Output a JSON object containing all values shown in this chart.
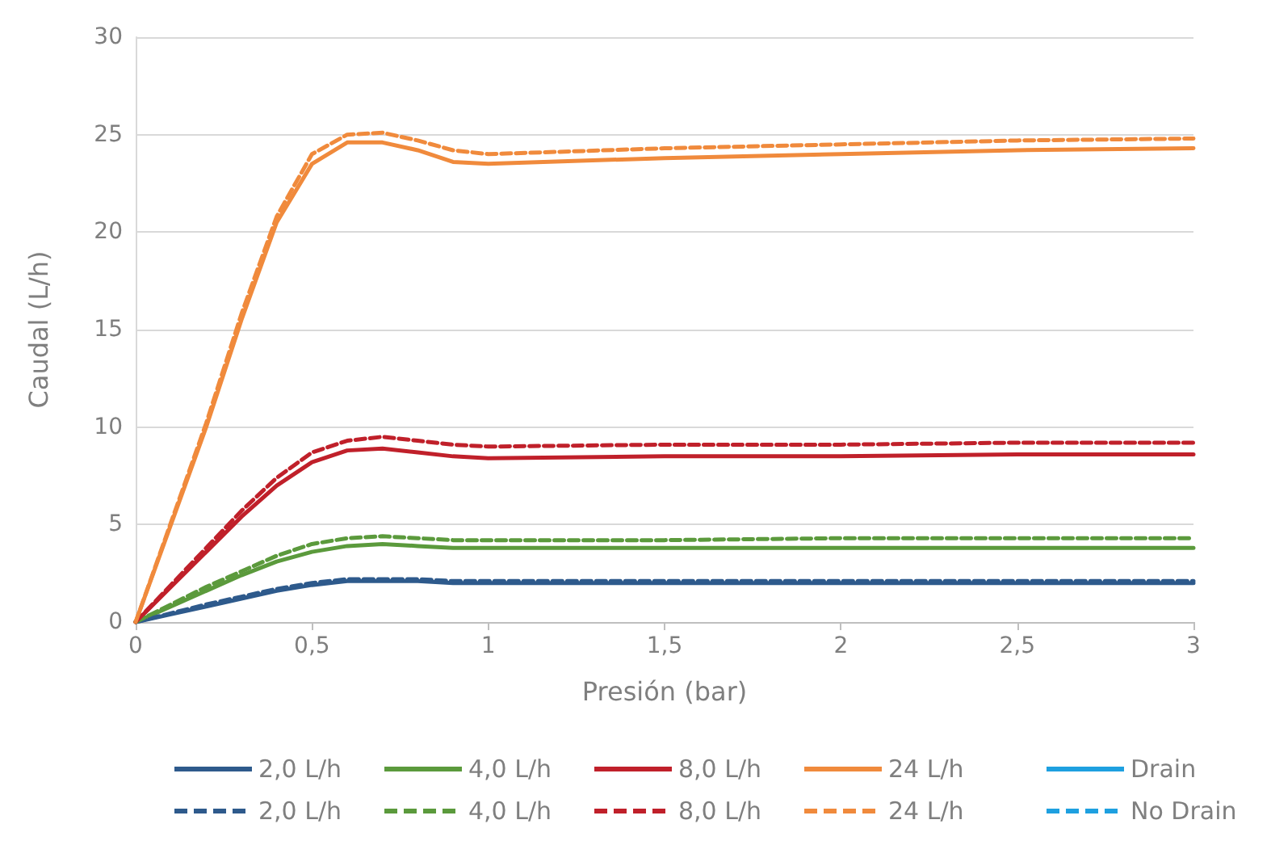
{
  "chart_data": {
    "type": "line",
    "xlabel": "Presión (bar)",
    "ylabel": "Caudal (L/h)",
    "x": [
      0,
      0.1,
      0.2,
      0.3,
      0.4,
      0.5,
      0.6,
      0.7,
      0.8,
      0.9,
      1,
      1.5,
      2,
      2.5,
      3
    ],
    "xlim": [
      0,
      3
    ],
    "xticks": [
      0,
      {
        "value": 0.5,
        "label": "0,5"
      },
      1,
      {
        "value": 1.5,
        "label": "1,5"
      },
      2,
      {
        "value": 2.5,
        "label": "2,5"
      },
      3
    ],
    "ylim": [
      0,
      30
    ],
    "yticks": [
      0,
      5,
      10,
      15,
      20,
      25,
      30
    ],
    "grid": "y",
    "legend": "bottom",
    "marker": "none",
    "series": [
      {
        "name": "2,0 L/h",
        "color": "#2e5a8c",
        "line_style": "solid",
        "values": [
          0,
          0.4,
          0.8,
          1.2,
          1.6,
          1.9,
          2.1,
          2.1,
          2.1,
          2.0,
          2.0,
          2.0,
          2.0,
          2.0,
          2.0
        ]
      },
      {
        "name": "4,0 L/h",
        "color": "#5b9a3c",
        "line_style": "solid",
        "values": [
          0,
          0.8,
          1.6,
          2.4,
          3.1,
          3.6,
          3.9,
          4.0,
          3.9,
          3.8,
          3.8,
          3.8,
          3.8,
          3.8,
          3.8
        ]
      },
      {
        "name": "8,0 L/h",
        "color": "#c0202a",
        "line_style": "solid",
        "values": [
          0,
          1.8,
          3.6,
          5.4,
          7.0,
          8.2,
          8.8,
          8.9,
          8.7,
          8.5,
          8.4,
          8.5,
          8.5,
          8.6,
          8.6
        ]
      },
      {
        "name": "24 L/h",
        "color": "#f08a3c",
        "line_style": "solid",
        "values": [
          0,
          5,
          10,
          15.5,
          20.5,
          23.5,
          24.6,
          24.6,
          24.2,
          23.6,
          23.5,
          23.8,
          24.0,
          24.2,
          24.3
        ]
      },
      {
        "name": "Drain",
        "color": "#1ea0e0",
        "line_style": "solid",
        "values": [
          null,
          null,
          null,
          null,
          null,
          null,
          null,
          null,
          null,
          null,
          null,
          null,
          null,
          null,
          null
        ]
      },
      {
        "name": "2,0 L/h",
        "color": "#2e5a8c",
        "line_style": "dashed",
        "values": [
          0,
          0.45,
          0.9,
          1.3,
          1.7,
          2.0,
          2.2,
          2.2,
          2.2,
          2.1,
          2.1,
          2.1,
          2.1,
          2.1,
          2.1
        ]
      },
      {
        "name": "4,0 L/h",
        "color": "#5b9a3c",
        "line_style": "dashed",
        "values": [
          0,
          0.9,
          1.8,
          2.6,
          3.4,
          4.0,
          4.3,
          4.4,
          4.3,
          4.2,
          4.2,
          4.2,
          4.3,
          4.3,
          4.3
        ]
      },
      {
        "name": "8,0 L/h",
        "color": "#c0202a",
        "line_style": "dashed",
        "values": [
          0,
          1.9,
          3.8,
          5.7,
          7.4,
          8.7,
          9.3,
          9.5,
          9.3,
          9.1,
          9.0,
          9.1,
          9.1,
          9.2,
          9.2
        ]
      },
      {
        "name": "24 L/h",
        "color": "#f08a3c",
        "line_style": "dashed",
        "values": [
          0,
          5.1,
          10.2,
          15.8,
          20.8,
          24.0,
          25.0,
          25.1,
          24.7,
          24.2,
          24.0,
          24.3,
          24.5,
          24.7,
          24.8
        ]
      },
      {
        "name": "No Drain",
        "color": "#1ea0e0",
        "line_style": "dashed",
        "values": [
          null,
          null,
          null,
          null,
          null,
          null,
          null,
          null,
          null,
          null,
          null,
          null,
          null,
          null,
          null
        ]
      }
    ]
  }
}
